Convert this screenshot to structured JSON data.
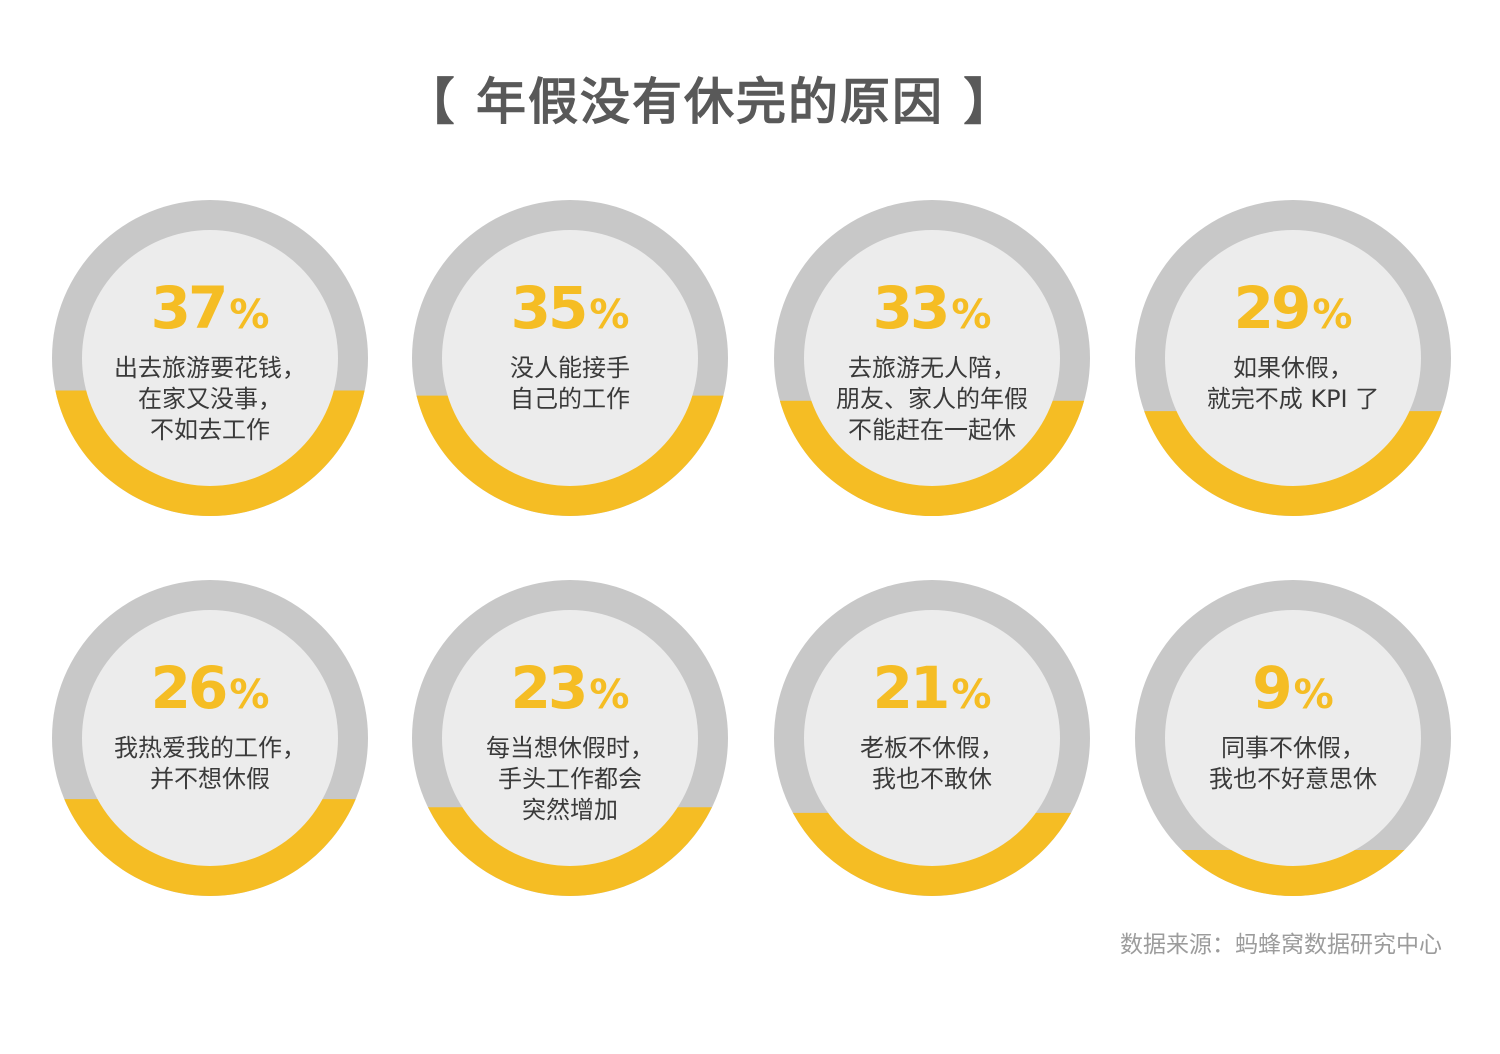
{
  "title": "【 年假没有休完的原因 】",
  "source": "数据来源：蚂蜂窝数据研究中心",
  "colors": {
    "accent": "#f5bd24",
    "track": "#c8c8c8",
    "inner": "#ececec",
    "text": "#3a3a3a",
    "title": "#595959",
    "source": "#9c9c9c"
  },
  "chart_data": {
    "type": "donut",
    "title": "【 年假没有休完的原因 】",
    "items": [
      {
        "percent": 37,
        "label": "37",
        "unit": "%",
        "lines": [
          "出去旅游要花钱，",
          "在家又没事，",
          "不如去工作"
        ]
      },
      {
        "percent": 35,
        "label": "35",
        "unit": "%",
        "lines": [
          "没人能接手",
          "自己的工作"
        ]
      },
      {
        "percent": 33,
        "label": "33",
        "unit": "%",
        "lines": [
          "去旅游无人陪，",
          "朋友、家人的年假",
          "不能赶在一起休"
        ]
      },
      {
        "percent": 29,
        "label": "29",
        "unit": "%",
        "lines": [
          "如果休假，",
          "就完不成 KPI 了"
        ]
      },
      {
        "percent": 26,
        "label": "26",
        "unit": "%",
        "lines": [
          "我热爱我的工作，",
          "并不想休假"
        ]
      },
      {
        "percent": 23,
        "label": "23",
        "unit": "%",
        "lines": [
          "每当想休假时，",
          "手头工作都会",
          "突然增加"
        ]
      },
      {
        "percent": 21,
        "label": "21",
        "unit": "%",
        "lines": [
          "老板不休假，",
          "我也不敢休"
        ]
      },
      {
        "percent": 9,
        "label": "9",
        "unit": "%",
        "lines": [
          "同事不休假，",
          "我也不好意思休"
        ]
      }
    ]
  }
}
